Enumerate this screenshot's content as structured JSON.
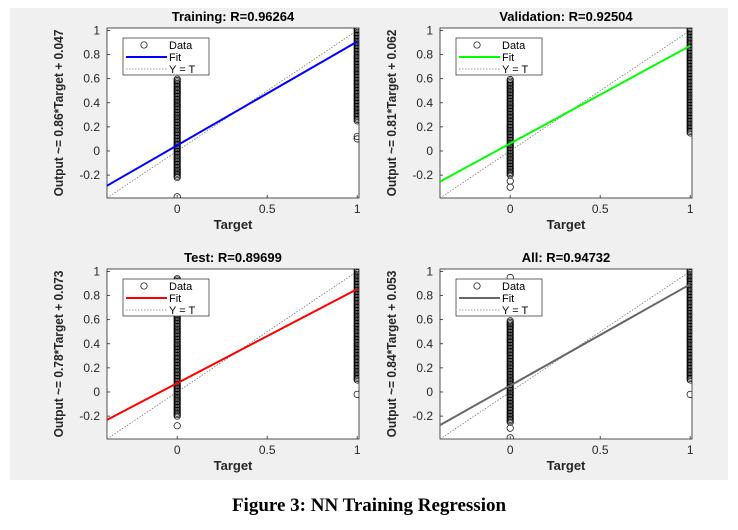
{
  "caption": "Figure 3: NN Training Regression",
  "chart_data": [
    {
      "type": "scatter",
      "title": "Training: R=0.96264",
      "xlabel": "Target",
      "ylabel": "Output ~= 0.86*Target + 0.047",
      "xlim": [
        -0.39,
        1.01
      ],
      "ylim": [
        -0.39,
        1.02
      ],
      "xticks": [
        "0",
        "0.5",
        "1"
      ],
      "yticks": [
        "-0.2",
        "0",
        "0.2",
        "0.4",
        "0.6",
        "0.8",
        "1"
      ],
      "grid": false,
      "legend": {
        "position": "top-left",
        "entries": [
          "Data",
          "Fit",
          "Y = T"
        ]
      },
      "fit": {
        "slope": 0.86,
        "intercept": 0.047,
        "color": "#0000ff"
      },
      "data": [
        {
          "target": 0,
          "dense_range": [
            -0.22,
            0.6
          ],
          "outliers": [
            -0.38
          ]
        },
        {
          "target": 1,
          "dense_range": [
            0.25,
            1.02
          ],
          "outliers": [
            0.1,
            0.12
          ]
        }
      ]
    },
    {
      "type": "scatter",
      "title": "Validation: R=0.92504",
      "xlabel": "Target",
      "ylabel": "Output ~= 0.81*Target + 0.062",
      "xlim": [
        -0.39,
        1.01
      ],
      "ylim": [
        -0.39,
        1.02
      ],
      "xticks": [
        "0",
        "0.5",
        "1"
      ],
      "yticks": [
        "-0.2",
        "0",
        "0.2",
        "0.4",
        "0.6",
        "0.8",
        "1"
      ],
      "grid": false,
      "legend": {
        "position": "top-left",
        "entries": [
          "Data",
          "Fit",
          "Y = T"
        ]
      },
      "fit": {
        "slope": 0.81,
        "intercept": 0.062,
        "color": "#00ff00"
      },
      "data": [
        {
          "target": 0,
          "dense_range": [
            -0.2,
            0.6
          ],
          "outliers": [
            -0.3,
            -0.25
          ]
        },
        {
          "target": 1,
          "dense_range": [
            0.15,
            1.02
          ],
          "outliers": []
        }
      ]
    },
    {
      "type": "scatter",
      "title": "Test: R=0.89699",
      "xlabel": "Target",
      "ylabel": "Output ~= 0.78*Target + 0.073",
      "xlim": [
        -0.39,
        1.01
      ],
      "ylim": [
        -0.39,
        1.02
      ],
      "xticks": [
        "0",
        "0.5",
        "1"
      ],
      "yticks": [
        "-0.2",
        "0",
        "0.2",
        "0.4",
        "0.6",
        "0.8",
        "1"
      ],
      "grid": false,
      "legend": {
        "position": "top-left",
        "entries": [
          "Data",
          "Fit",
          "Y = T"
        ]
      },
      "fit": {
        "slope": 0.78,
        "intercept": 0.073,
        "color": "#ff0000"
      },
      "data": [
        {
          "target": 0,
          "dense_range": [
            -0.2,
            0.95
          ],
          "outliers": [
            -0.28
          ]
        },
        {
          "target": 1,
          "dense_range": [
            0.1,
            1.02
          ],
          "outliers": [
            -0.02
          ]
        }
      ]
    },
    {
      "type": "scatter",
      "title": "All: R=0.94732",
      "xlabel": "Target",
      "ylabel": "Output ~= 0.84*Target + 0.053",
      "xlim": [
        -0.39,
        1.01
      ],
      "ylim": [
        -0.39,
        1.02
      ],
      "xticks": [
        "0",
        "0.5",
        "1"
      ],
      "yticks": [
        "-0.2",
        "0",
        "0.2",
        "0.4",
        "0.6",
        "0.8",
        "1"
      ],
      "grid": false,
      "legend": {
        "position": "top-left",
        "entries": [
          "Data",
          "Fit",
          "Y = T"
        ]
      },
      "fit": {
        "slope": 0.84,
        "intercept": 0.053,
        "color": "#666666"
      },
      "data": [
        {
          "target": 0,
          "dense_range": [
            -0.25,
            0.6
          ],
          "outliers": [
            -0.38,
            -0.3,
            0.95
          ]
        },
        {
          "target": 1,
          "dense_range": [
            0.1,
            1.02
          ],
          "outliers": [
            -0.02
          ]
        }
      ]
    }
  ]
}
